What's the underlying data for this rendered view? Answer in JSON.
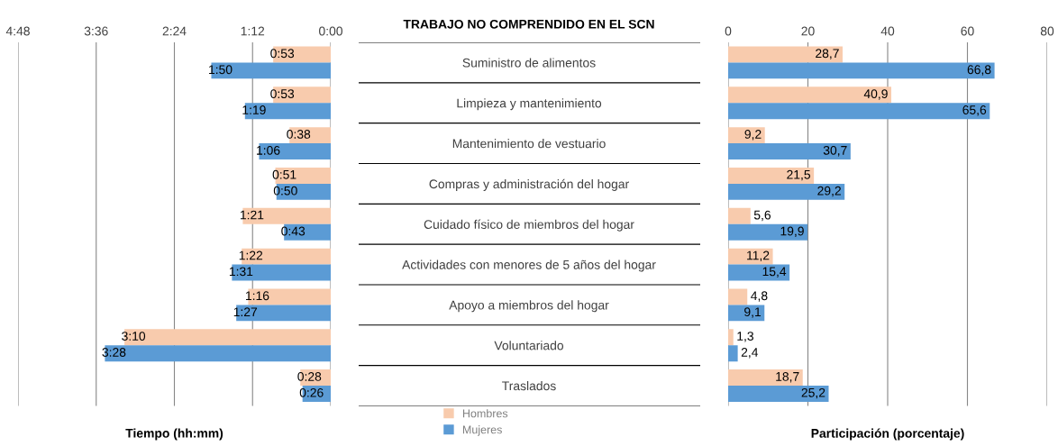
{
  "chart_data": [
    {
      "type": "bar",
      "orientation": "horizontal",
      "title": "TRABAJO NO COMPRENDIDO EN EL SCN",
      "xlabel": "Tiempo (hh:mm)",
      "categories": [
        "Suministro de alimentos",
        "Limpieza y mantenimiento",
        "Mantenimiento de vestuario",
        "Compras y administración del hogar",
        "Cuidado físico de miembros del hogar",
        "Actividades con menores de 5 años del hogar",
        "Apoyo a miembros del hogar",
        "Voluntariado",
        "Traslados"
      ],
      "series": [
        {
          "name": "Hombres",
          "color": "#f8cbad",
          "values": [
            53,
            53,
            38,
            51,
            81,
            82,
            76,
            190,
            28
          ],
          "value_labels": [
            "0:53",
            "0:53",
            "0:38",
            "0:51",
            "1:21",
            "1:22",
            "1:16",
            "3:10",
            "0:28"
          ]
        },
        {
          "name": "Mujeres",
          "color": "#5b9bd5",
          "values": [
            110,
            79,
            66,
            50,
            43,
            91,
            87,
            208,
            26
          ],
          "value_labels": [
            "1:50",
            "1:19",
            "1:06",
            "0:50",
            "0:43",
            "1:31",
            "1:27",
            "3:28",
            "0:26"
          ]
        }
      ],
      "xlim": [
        288,
        0
      ],
      "xticks": [
        {
          "value": 288,
          "label": "4:48"
        },
        {
          "value": 216,
          "label": "3:36"
        },
        {
          "value": 144,
          "label": "2:24"
        },
        {
          "value": 72,
          "label": "1:12"
        },
        {
          "value": 0,
          "label": "0:00"
        }
      ],
      "grid": "x",
      "legend": "bottom right"
    },
    {
      "type": "bar",
      "orientation": "horizontal",
      "xlabel": "Participación (porcentaje)",
      "categories": [
        null,
        null,
        null,
        null,
        null,
        null,
        null,
        null,
        null
      ],
      "series": [
        {
          "color": "#f8cbad",
          "values": [
            28.7,
            40.9,
            9.2,
            21.5,
            5.6,
            11.2,
            4.8,
            1.3,
            18.7
          ],
          "value_labels": [
            "28,7",
            "40,9",
            "9,2",
            "21,5",
            "5,6",
            "11,2",
            "4,8",
            "1,3",
            "18,7"
          ]
        },
        {
          "color": "#5b9bd5",
          "values": [
            66.8,
            65.6,
            30.7,
            29.2,
            19.9,
            15.4,
            9.1,
            2.4,
            25.2
          ],
          "value_labels": [
            "66,8",
            "65,6",
            "30,7",
            "29,2",
            "19,9",
            "15,4",
            "9,1",
            "2,4",
            "25,2"
          ]
        }
      ],
      "xlim": [
        0,
        80
      ],
      "xticks": [
        0,
        20,
        40,
        60,
        80
      ],
      "grid": "x",
      "tick_labels": "x"
    }
  ]
}
